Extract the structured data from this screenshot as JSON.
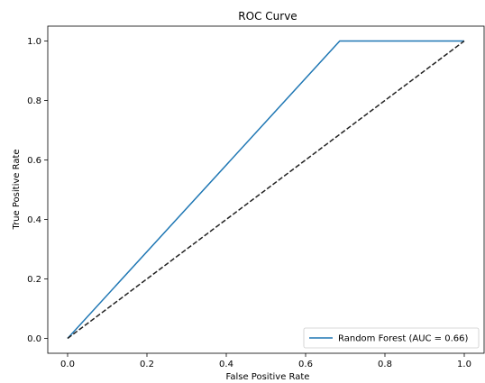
{
  "chart_data": {
    "type": "line",
    "title": "ROC Curve",
    "xlabel": "False Positive Rate",
    "ylabel": "True Positive Rate",
    "xlim": [
      -0.05,
      1.05
    ],
    "ylim": [
      -0.05,
      1.05
    ],
    "xticks": [
      0.0,
      0.2,
      0.4,
      0.6,
      0.8,
      1.0
    ],
    "yticks": [
      0.0,
      0.2,
      0.4,
      0.6,
      0.8,
      1.0
    ],
    "xtick_labels": [
      "0.0",
      "0.2",
      "0.4",
      "0.6",
      "0.8",
      "1.0"
    ],
    "ytick_labels": [
      "0.0",
      "0.2",
      "0.4",
      "0.6",
      "0.8",
      "1.0"
    ],
    "grid": false,
    "legend_position": "lower-right",
    "series": [
      {
        "name": "Random Forest (AUC = 0.66)",
        "color": "#1f77b4",
        "style": "solid",
        "x": [
          0.0,
          0.686,
          1.0
        ],
        "y": [
          0.0,
          1.0,
          1.0
        ]
      },
      {
        "color": "#222222",
        "style": "dashed",
        "x": [
          0.0,
          1.0
        ],
        "y": [
          0.0,
          1.0
        ]
      }
    ]
  }
}
